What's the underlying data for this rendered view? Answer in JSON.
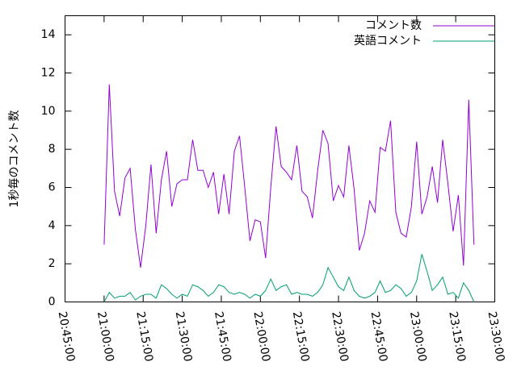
{
  "chart_data": {
    "type": "line",
    "ylabel": "1秒毎のコメント数",
    "x": [
      "21:00:00",
      "21:02:00",
      "21:04:00",
      "21:06:00",
      "21:08:00",
      "21:10:00",
      "21:12:00",
      "21:14:00",
      "21:16:00",
      "21:18:00",
      "21:20:00",
      "21:22:00",
      "21:24:00",
      "21:26:00",
      "21:28:00",
      "21:30:00",
      "21:32:00",
      "21:34:00",
      "21:36:00",
      "21:38:00",
      "21:40:00",
      "21:42:00",
      "21:44:00",
      "21:46:00",
      "21:48:00",
      "21:50:00",
      "21:52:00",
      "21:54:00",
      "21:56:00",
      "21:58:00",
      "22:00:00",
      "22:02:00",
      "22:04:00",
      "22:06:00",
      "22:08:00",
      "22:10:00",
      "22:12:00",
      "22:14:00",
      "22:16:00",
      "22:18:00",
      "22:20:00",
      "22:22:00",
      "22:24:00",
      "22:26:00",
      "22:28:00",
      "22:30:00",
      "22:32:00",
      "22:34:00",
      "22:36:00",
      "22:38:00",
      "22:40:00",
      "22:42:00",
      "22:44:00",
      "22:46:00",
      "22:48:00",
      "22:50:00",
      "22:52:00",
      "22:54:00",
      "22:56:00",
      "22:58:00",
      "23:00:00",
      "23:02:00",
      "23:04:00",
      "23:06:00",
      "23:08:00",
      "23:10:00",
      "23:12:00",
      "23:14:00",
      "23:16:00",
      "23:18:00",
      "23:20:00",
      "23:22:00"
    ],
    "series": [
      {
        "name": "コメント数",
        "color": "#9400d3",
        "values": [
          3.0,
          11.4,
          5.8,
          4.5,
          6.5,
          7.0,
          3.8,
          1.8,
          4.0,
          7.2,
          3.6,
          6.4,
          7.9,
          5.0,
          6.2,
          6.4,
          6.4,
          8.5,
          6.9,
          6.9,
          6.0,
          6.8,
          4.6,
          6.7,
          4.6,
          7.9,
          8.7,
          6.0,
          3.2,
          4.3,
          4.2,
          2.3,
          6.0,
          9.2,
          7.1,
          6.8,
          6.4,
          8.2,
          5.8,
          5.5,
          4.4,
          6.9,
          9.0,
          8.3,
          5.3,
          6.1,
          5.5,
          8.2,
          5.9,
          2.7,
          3.6,
          5.3,
          4.7,
          8.1,
          7.9,
          9.5,
          4.7,
          3.6,
          3.4,
          5.0,
          8.4,
          4.6,
          5.5,
          7.1,
          5.2,
          8.5,
          6.2,
          3.7,
          5.6,
          1.9,
          10.6,
          3.0
        ]
      },
      {
        "name": "英語コメント",
        "color": "#009e73",
        "values": [
          0.0,
          0.5,
          0.2,
          0.3,
          0.3,
          0.5,
          0.1,
          0.3,
          0.4,
          0.4,
          0.2,
          0.9,
          0.7,
          0.4,
          0.2,
          0.4,
          0.3,
          0.9,
          0.8,
          0.6,
          0.3,
          0.5,
          0.9,
          0.8,
          0.5,
          0.4,
          0.5,
          0.4,
          0.2,
          0.4,
          0.3,
          0.6,
          1.2,
          0.6,
          0.8,
          0.9,
          0.4,
          0.5,
          0.4,
          0.4,
          0.3,
          0.5,
          0.9,
          1.8,
          1.3,
          0.8,
          0.6,
          1.3,
          0.6,
          0.3,
          0.2,
          0.3,
          0.5,
          1.1,
          0.5,
          0.6,
          0.9,
          0.7,
          0.3,
          0.5,
          1.1,
          2.5,
          1.6,
          0.6,
          0.9,
          1.3,
          0.4,
          0.5,
          0.2,
          1.0,
          0.6,
          0.0
        ]
      }
    ],
    "xlim": [
      "20:45:00",
      "23:30:00"
    ],
    "xticks": [
      "20:45:00",
      "21:00:00",
      "21:15:00",
      "21:30:00",
      "21:45:00",
      "22:00:00",
      "22:15:00",
      "22:30:00",
      "22:45:00",
      "23:00:00",
      "23:15:00",
      "23:30:00"
    ],
    "ylim": [
      0,
      15
    ],
    "yticks": [
      0,
      2,
      4,
      6,
      8,
      10,
      12,
      14
    ],
    "legend": "top-right"
  }
}
